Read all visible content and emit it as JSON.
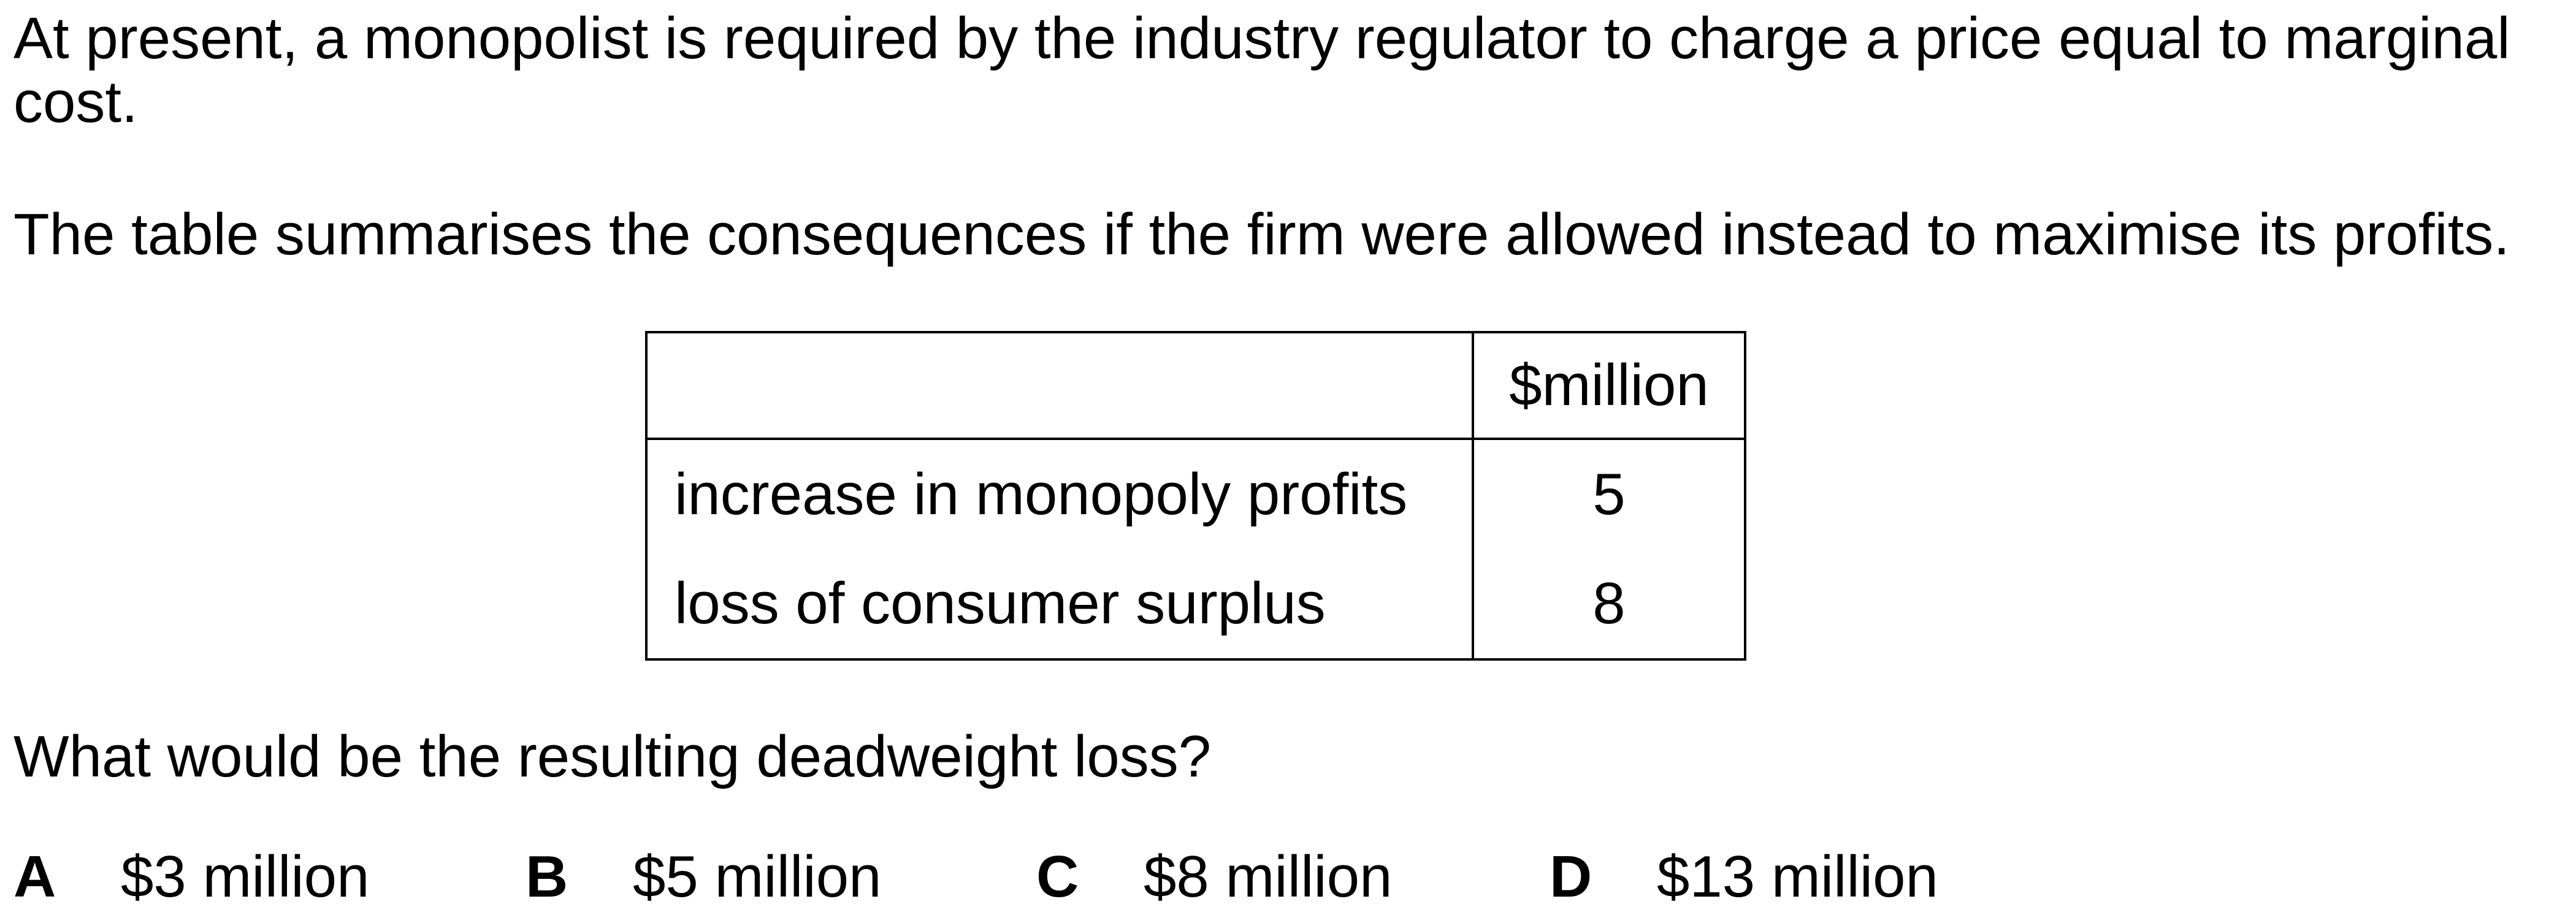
{
  "question": {
    "intro_line_1": "At present, a monopolist is required by the industry regulator to charge a price equal to marginal",
    "intro_line_2": "cost.",
    "summary": "The table summarises the consequences if the firm were allowed instead to maximise its profits.",
    "prompt": "What would be the resulting deadweight loss?"
  },
  "table": {
    "header_label": "",
    "header_value": "$million",
    "rows": [
      {
        "label": "increase in monopoly profits",
        "value": "5"
      },
      {
        "label": "loss of consumer surplus",
        "value": "8"
      }
    ]
  },
  "options": [
    {
      "letter": "A",
      "text": "$3 million"
    },
    {
      "letter": "B",
      "text": "$5 million"
    },
    {
      "letter": "C",
      "text": "$8 million"
    },
    {
      "letter": "D",
      "text": "$13 million"
    }
  ]
}
